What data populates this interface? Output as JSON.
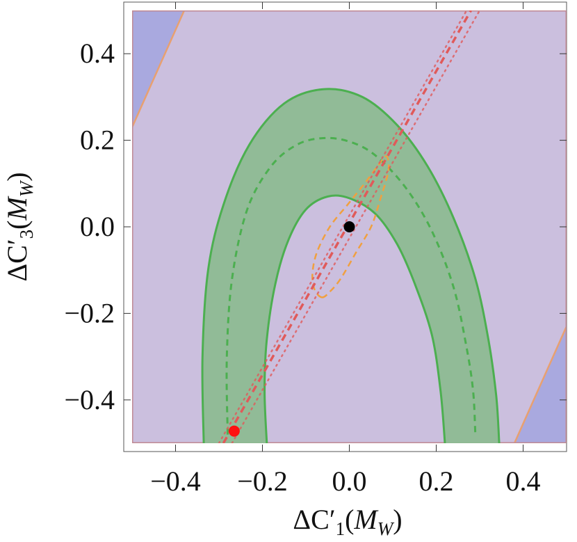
{
  "chart_data": {
    "type": "contour",
    "title": "",
    "xlabel": "ΔC′1(MW)",
    "ylabel": "ΔC′3(MW)",
    "xlabel_parts": {
      "base": "ΔC′",
      "sub": "1",
      "open": "(",
      "ital": "M",
      "isub": "W",
      "close": ")"
    },
    "ylabel_parts": {
      "base": "ΔC′",
      "sub": "3",
      "open": "(",
      "ital": "M",
      "isub": "W",
      "close": ")"
    },
    "xlim": [
      -0.5,
      0.5
    ],
    "ylim": [
      -0.5,
      0.5
    ],
    "x_ticks": [
      -0.4,
      -0.2,
      0.0,
      0.2,
      0.4
    ],
    "y_ticks": [
      -0.4,
      -0.2,
      0.0,
      0.2,
      0.4
    ],
    "x_tick_labels": [
      "−0.4",
      "−0.2",
      "0.0",
      "0.2",
      "0.4"
    ],
    "y_tick_labels": [
      "−0.4",
      "−0.2",
      "0.0",
      "0.2",
      "0.4"
    ],
    "colors": {
      "blue_region": "#a9a9df",
      "blue_edge": "#6a6aff",
      "pink_region": "#cbbfde",
      "pink_edge": "#c08a94",
      "orange_line": "#e8a070",
      "green_fill": "#8dba92",
      "green_line": "#4caf50",
      "red_line": "#e05a5a",
      "orange_dash": "#f0a040"
    },
    "regions": [
      {
        "id": "blue-band",
        "points": [
          [
            -0.5,
            0.5
          ],
          [
            0.5,
            0.5
          ],
          [
            0.5,
            -0.5
          ],
          [
            -0.5,
            -0.5
          ]
        ]
      },
      {
        "id": "pink-band",
        "points": [
          [
            -0.38,
            0.5
          ],
          [
            0.5,
            0.5
          ],
          [
            0.5,
            -0.23
          ],
          [
            0.38,
            -0.5
          ],
          [
            -0.5,
            -0.5
          ],
          [
            -0.5,
            0.23
          ]
        ]
      }
    ],
    "green_band": {
      "outer": [
        [
          -0.335,
          -0.5
        ],
        [
          -0.338,
          -0.3
        ],
        [
          -0.325,
          -0.1
        ],
        [
          -0.29,
          0.05
        ],
        [
          -0.23,
          0.19
        ],
        [
          -0.15,
          0.285
        ],
        [
          -0.06,
          0.318
        ],
        [
          0.03,
          0.3
        ],
        [
          0.11,
          0.235
        ],
        [
          0.18,
          0.14
        ],
        [
          0.24,
          0.02
        ],
        [
          0.29,
          -0.12
        ],
        [
          0.32,
          -0.26
        ],
        [
          0.338,
          -0.39
        ],
        [
          0.345,
          -0.5
        ]
      ],
      "inner": [
        [
          0.22,
          -0.5
        ],
        [
          0.21,
          -0.38
        ],
        [
          0.19,
          -0.25
        ],
        [
          0.15,
          -0.13
        ],
        [
          0.11,
          -0.04
        ],
        [
          0.06,
          0.03
        ],
        [
          0.0,
          0.066
        ],
        [
          -0.05,
          0.07
        ],
        [
          -0.1,
          0.04
        ],
        [
          -0.14,
          -0.03
        ],
        [
          -0.17,
          -0.13
        ],
        [
          -0.19,
          -0.26
        ],
        [
          -0.195,
          -0.38
        ],
        [
          -0.19,
          -0.5
        ]
      ],
      "center_dashed": [
        [
          -0.28,
          -0.48
        ],
        [
          -0.282,
          -0.3
        ],
        [
          -0.27,
          -0.12
        ],
        [
          -0.235,
          0.04
        ],
        [
          -0.18,
          0.14
        ],
        [
          -0.12,
          0.19
        ],
        [
          -0.06,
          0.205
        ],
        [
          0.0,
          0.197
        ],
        [
          0.06,
          0.165
        ],
        [
          0.13,
          0.09
        ],
        [
          0.19,
          -0.01
        ],
        [
          0.24,
          -0.14
        ],
        [
          0.27,
          -0.28
        ],
        [
          0.285,
          -0.38
        ],
        [
          0.29,
          -0.48
        ]
      ]
    },
    "orange_contour": [
      [
        -0.063,
        -0.163
      ],
      [
        -0.08,
        -0.145
      ],
      [
        -0.085,
        -0.11
      ],
      [
        -0.075,
        -0.06
      ],
      [
        -0.045,
        0.0
      ],
      [
        -0.005,
        0.05
      ],
      [
        0.035,
        0.1
      ],
      [
        0.065,
        0.14
      ],
      [
        0.085,
        0.163
      ],
      [
        0.09,
        0.13
      ],
      [
        0.07,
        0.06
      ],
      [
        0.05,
        0.0
      ],
      [
        0.015,
        -0.06
      ],
      [
        -0.02,
        -0.12
      ],
      [
        -0.045,
        -0.15
      ],
      [
        -0.063,
        -0.163
      ]
    ],
    "red_dashed_line": [
      [
        -0.29,
        -0.5
      ],
      [
        0.28,
        0.5
      ]
    ],
    "red_dotted_lines": [
      [
        [
          -0.3,
          -0.5
        ],
        [
          0.27,
          0.5
        ]
      ],
      [
        [
          -0.27,
          -0.5
        ],
        [
          0.3,
          0.5
        ]
      ]
    ],
    "points": [
      {
        "name": "black-point",
        "x": 0.0,
        "y": 0.0,
        "color": "#000000"
      },
      {
        "name": "red-point",
        "x": -0.265,
        "y": -0.472,
        "color": "#ff1111"
      }
    ],
    "grid": false,
    "legend": "none"
  }
}
